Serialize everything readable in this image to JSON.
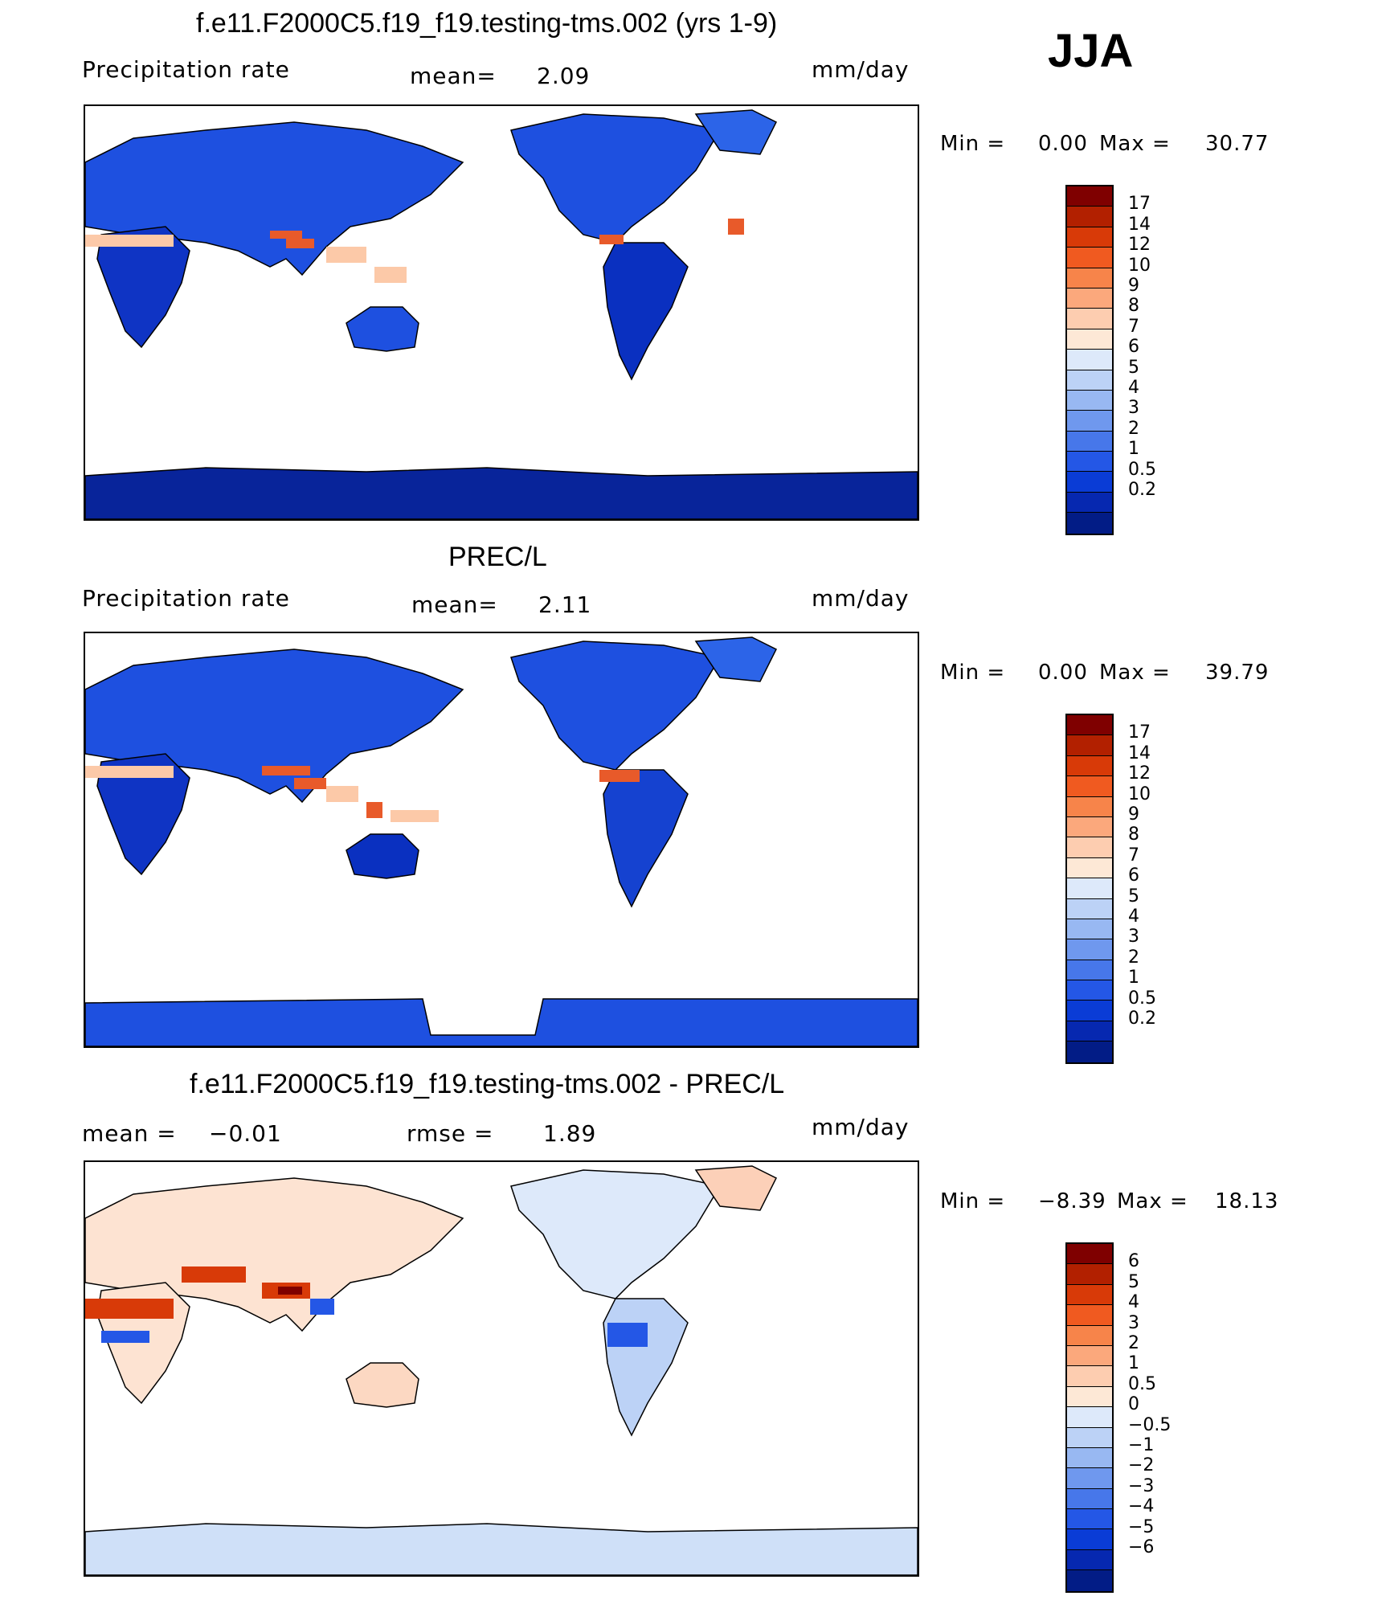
{
  "season": "JJA",
  "palette_prec": [
    "#7f0000",
    "#b22000",
    "#d83a08",
    "#f05a20",
    "#f7844a",
    "#fba87c",
    "#fdcdb0",
    "#fde8d6",
    "#dde9fa",
    "#bcd2f6",
    "#98b8f2",
    "#6f98ee",
    "#4777ea",
    "#2457e6",
    "#0a3cd6",
    "#0628b0",
    "#021c86"
  ],
  "palette_diff": [
    "#7f0000",
    "#b22000",
    "#d83a08",
    "#f05a20",
    "#f7844a",
    "#fba87c",
    "#fdcdb0",
    "#fde8d6",
    "#dde9fa",
    "#bcd2f6",
    "#98b8f2",
    "#6f98ee",
    "#4777ea",
    "#2457e6",
    "#0a3cd6",
    "#0628b0",
    "#021c86"
  ],
  "panel1": {
    "title": "f.e11.F2000C5.f19_f19.testing-tms.002 (yrs 1-9)",
    "variable": "Precipitation rate",
    "mean_label": "mean=",
    "mean_value": "2.09",
    "units": "mm/day",
    "min_label": "Min =",
    "min_value": "0.00",
    "max_label": "Max =",
    "max_value": "30.77",
    "levels": [
      "17",
      "14",
      "12",
      "10",
      "9",
      "8",
      "7",
      "6",
      "5",
      "4",
      "3",
      "2",
      "1",
      "0.5",
      "0.2"
    ]
  },
  "panel2": {
    "title": "PREC/L",
    "variable": "Precipitation rate",
    "mean_label": "mean=",
    "mean_value": "2.11",
    "units": "mm/day",
    "min_label": "Min =",
    "min_value": "0.00",
    "max_label": "Max =",
    "max_value": "39.79",
    "levels": [
      "17",
      "14",
      "12",
      "10",
      "9",
      "8",
      "7",
      "6",
      "5",
      "4",
      "3",
      "2",
      "1",
      "0.5",
      "0.2"
    ]
  },
  "panel3": {
    "title": "f.e11.F2000C5.f19_f19.testing-tms.002 - PREC/L",
    "mean_label": "mean =",
    "mean_value": "−0.01",
    "rmse_label": "rmse =",
    "rmse_value": "1.89",
    "units": "mm/day",
    "min_label": "Min =",
    "min_value": "−8.39",
    "max_label": "Max =",
    "max_value": "18.13",
    "levels": [
      "6",
      "5",
      "4",
      "3",
      "2",
      "1",
      "0.5",
      "0",
      "−0.5",
      "−1",
      "−2",
      "−3",
      "−4",
      "−5",
      "−6"
    ]
  }
}
